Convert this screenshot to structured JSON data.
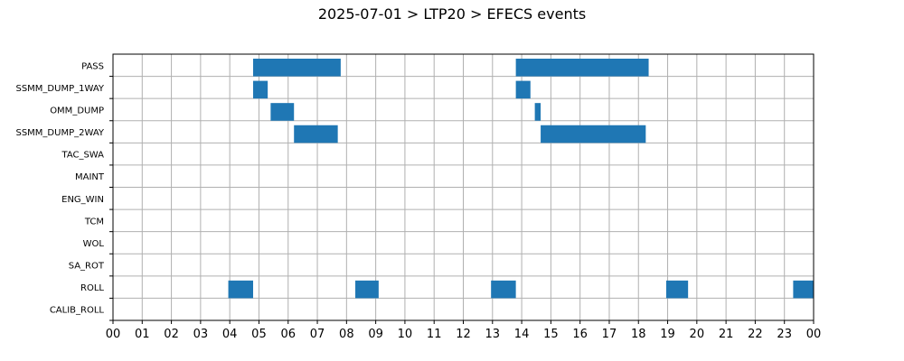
{
  "chart_data": {
    "type": "bar",
    "orientation": "horizontal-timeline",
    "title": "2025-07-01 > LTP20 > EFECS events",
    "xlabel": "",
    "ylabel": "",
    "xlim_hours": [
      0,
      24
    ],
    "x_tick_labels": [
      "00",
      "01",
      "02",
      "03",
      "04",
      "05",
      "06",
      "07",
      "08",
      "09",
      "10",
      "11",
      "12",
      "13",
      "14",
      "15",
      "16",
      "17",
      "18",
      "19",
      "20",
      "21",
      "22",
      "23",
      "00"
    ],
    "grid": true,
    "bar_color": "#1f77b4",
    "categories": [
      "PASS",
      "SSMM_DUMP_1WAY",
      "OMM_DUMP",
      "SSMM_DUMP_2WAY",
      "TAC_SWA",
      "MAINT",
      "ENG_WIN",
      "TCM",
      "WOL",
      "SA_ROT",
      "ROLL",
      "CALIB_ROLL"
    ],
    "events": [
      {
        "category": "PASS",
        "start": 4.8,
        "end": 7.8
      },
      {
        "category": "PASS",
        "start": 13.8,
        "end": 18.35
      },
      {
        "category": "SSMM_DUMP_1WAY",
        "start": 4.8,
        "end": 5.3
      },
      {
        "category": "SSMM_DUMP_1WAY",
        "start": 13.8,
        "end": 14.3
      },
      {
        "category": "OMM_DUMP",
        "start": 5.4,
        "end": 6.2
      },
      {
        "category": "OMM_DUMP",
        "start": 14.45,
        "end": 14.65
      },
      {
        "category": "SSMM_DUMP_2WAY",
        "start": 6.2,
        "end": 7.7
      },
      {
        "category": "SSMM_DUMP_2WAY",
        "start": 14.65,
        "end": 18.25
      },
      {
        "category": "ROLL",
        "start": 3.95,
        "end": 4.8
      },
      {
        "category": "ROLL",
        "start": 8.3,
        "end": 9.1
      },
      {
        "category": "ROLL",
        "start": 12.95,
        "end": 13.8
      },
      {
        "category": "ROLL",
        "start": 18.95,
        "end": 19.7
      },
      {
        "category": "ROLL",
        "start": 23.3,
        "end": 24.0
      }
    ]
  }
}
